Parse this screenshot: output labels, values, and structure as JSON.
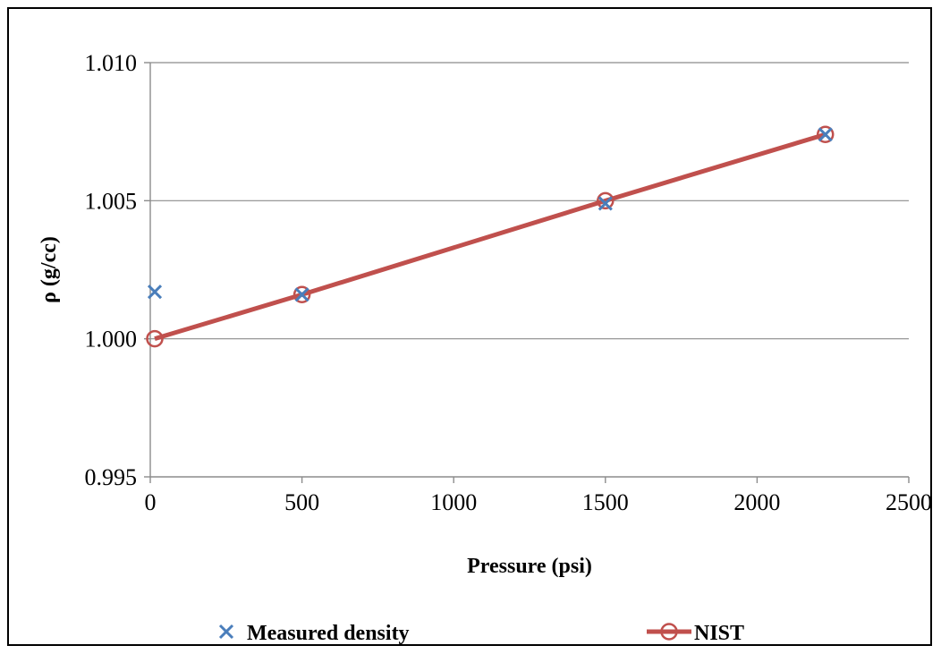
{
  "chart_data": {
    "type": "scatter",
    "title": "",
    "xlabel": "Pressure (psi)",
    "ylabel": "ρ (g/cc)",
    "xlim": [
      0,
      2500
    ],
    "ylim": [
      0.995,
      1.01
    ],
    "x_ticks": [
      {
        "value": 0,
        "label": "0"
      },
      {
        "value": 500,
        "label": "500"
      },
      {
        "value": 1000,
        "label": "1000"
      },
      {
        "value": 1500,
        "label": "1500"
      },
      {
        "value": 2000,
        "label": "2000"
      },
      {
        "value": 2500,
        "label": "2500"
      }
    ],
    "y_ticks": [
      {
        "value": 0.995,
        "label": "0.995"
      },
      {
        "value": 1.0,
        "label": "1.000"
      },
      {
        "value": 1.005,
        "label": "1.005"
      },
      {
        "value": 1.01,
        "label": "1.010"
      }
    ],
    "grid": "horizontal major gridlines",
    "legend_position": "bottom",
    "series": [
      {
        "name": "Measured density",
        "style": "markers-x",
        "color": "#4a7ebb",
        "points": [
          {
            "x": 14.7,
            "y": 1.0017
          },
          {
            "x": 500,
            "y": 1.0016
          },
          {
            "x": 1500,
            "y": 1.0049
          },
          {
            "x": 2225,
            "y": 1.0074
          }
        ]
      },
      {
        "name": "NIST",
        "style": "line-circle",
        "color": "#c0504d",
        "points": [
          {
            "x": 14.7,
            "y": 1.0
          },
          {
            "x": 500,
            "y": 1.0016
          },
          {
            "x": 1500,
            "y": 1.005
          },
          {
            "x": 2225,
            "y": 1.0074
          }
        ]
      }
    ]
  }
}
